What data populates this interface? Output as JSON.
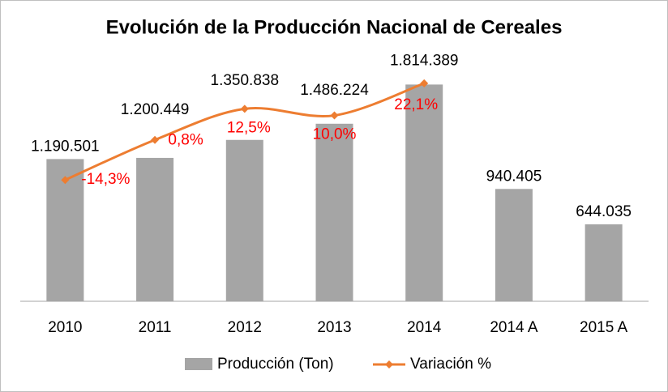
{
  "chart_data": {
    "type": "bar_line",
    "title": "Evolución de la Producción Nacional de Cereales",
    "categories": [
      "2010",
      "2011",
      "2012",
      "2013",
      "2014",
      "2014 A",
      "2015 A"
    ],
    "series": [
      {
        "name": "Producción (Ton)",
        "type": "bar",
        "color": "#a5a5a5",
        "values": [
          1190501,
          1200449,
          1350838,
          1486224,
          1814389,
          940405,
          644035
        ],
        "value_labels": [
          "1.190.501",
          "1.200.449",
          "1.350.838",
          "1.486.224",
          "1.814.389",
          "940.405",
          "644.035"
        ]
      },
      {
        "name": "Variación %",
        "type": "line",
        "axis": "y2",
        "color": "#ed7d31",
        "label_color": "#ff0000",
        "values": [
          -14.3,
          0.8,
          12.5,
          10.0,
          22.1,
          null,
          null
        ],
        "value_labels": [
          "-14,3%",
          "0,8%",
          "12,5%",
          "10,0%",
          "22,1%",
          null,
          null
        ]
      }
    ],
    "ylim": [
      0,
      2000000
    ],
    "y2lim": [
      -60,
      30
    ],
    "legend": "bottom"
  }
}
